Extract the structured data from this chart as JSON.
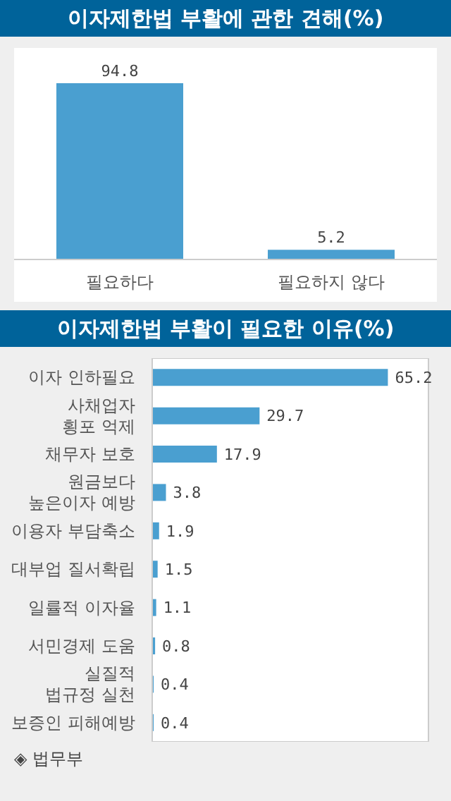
{
  "chart_data": [
    {
      "type": "bar",
      "title": "이자제한법 부활에 관한 견해(%)",
      "categories": [
        "필요하다",
        "필요하지 않다"
      ],
      "values": [
        94.8,
        5.2
      ],
      "color": "#4a9fd0",
      "data_labels": true
    },
    {
      "type": "bar",
      "orientation": "horizontal",
      "title": "이자제한법 부활이 필요한 이유(%)",
      "categories": [
        "이자 인하필요",
        "사채업자\n횡포 억제",
        "채무자 보호",
        "원금보다\n높은이자 예방",
        "이용자 부담축소",
        "대부업 질서확립",
        "일률적 이자율",
        "서민경제 도움",
        "실질적\n법규정 실천",
        "보증인 피해예방"
      ],
      "values": [
        65.2,
        29.7,
        17.9,
        3.8,
        1.9,
        1.5,
        1.1,
        0.8,
        0.4,
        0.4
      ],
      "color": "#4a9fd0",
      "data_labels": true,
      "annotations": [
        "◈ 법무부"
      ]
    }
  ]
}
